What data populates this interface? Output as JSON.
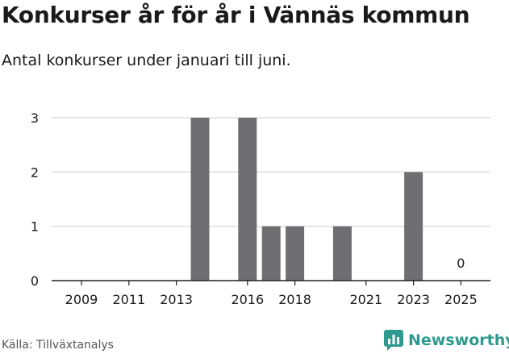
{
  "title": "Konkurser år för år i Vännäs kommun",
  "subtitle": "Antal konkurser under januari till juni.",
  "source": "Källa: Tillväxtanalys",
  "logo": {
    "text": "Newsworthy",
    "icon": "newsworthy-logo-icon",
    "color": "#2e9a8f"
  },
  "colors": {
    "bar": "#6f6e73",
    "grid": "#dddddd",
    "axis": "#222222"
  },
  "chart_data": {
    "type": "bar",
    "categories": [
      "2009",
      "2010",
      "2011",
      "2012",
      "2013",
      "2014",
      "2015",
      "2016",
      "2017",
      "2018",
      "2019",
      "2020",
      "2021",
      "2022",
      "2023",
      "2024",
      "2025"
    ],
    "values": [
      0,
      0,
      0,
      0,
      0,
      3,
      0,
      3,
      1,
      1,
      0,
      1,
      0,
      0,
      2,
      0,
      0
    ],
    "xtick_labels": [
      "2009",
      "2011",
      "2013",
      "2016",
      "2018",
      "2021",
      "2023",
      "2025"
    ],
    "yticks": [
      0,
      1,
      2,
      3
    ],
    "ylim": [
      0,
      3
    ],
    "annotations": [
      {
        "category": "2025",
        "text": "0"
      }
    ],
    "grid": true,
    "xlabel": "",
    "ylabel": ""
  }
}
